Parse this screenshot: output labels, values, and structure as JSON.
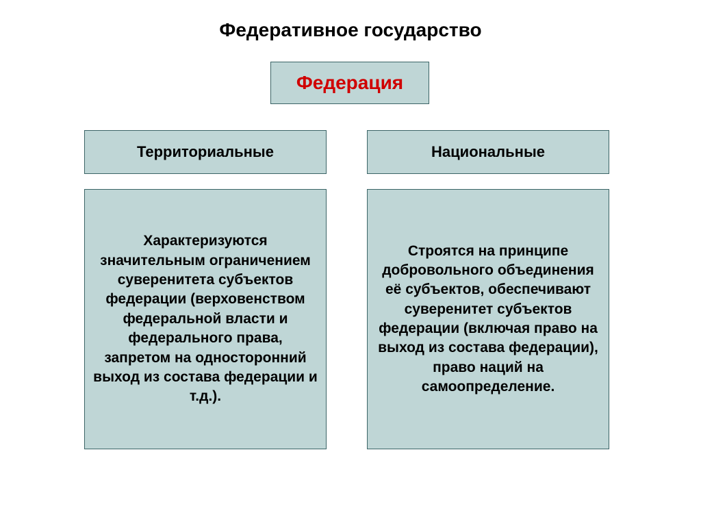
{
  "title": {
    "text": "Федеративное государство",
    "color": "#000000",
    "fontsize": 28
  },
  "topBox": {
    "label": "Федерация",
    "bg": "#bfd6d6",
    "border": "#3b6466",
    "textColor": "#d00000",
    "fontsize": 28
  },
  "columns": {
    "left": {
      "header": "Территориальные",
      "body": "Характеризуются значительным ограничением суверенитета субъектов федерации (верховенством федеральной власти и федерального права, запретом на односторонний выход из состава федерации и т.д.)."
    },
    "right": {
      "header": "Национальные",
      "body": "Строятся на принципе добровольного объединения её субъектов, обеспечивают суверенитет субъектов федерации (включая право на выход из состава федерации), право наций на самоопределение."
    }
  },
  "style": {
    "boxBg": "#bfd6d6",
    "boxBorder": "#3b6466",
    "headerFontsize": 22,
    "bodyFontsize": 21,
    "textColor": "#000000"
  }
}
